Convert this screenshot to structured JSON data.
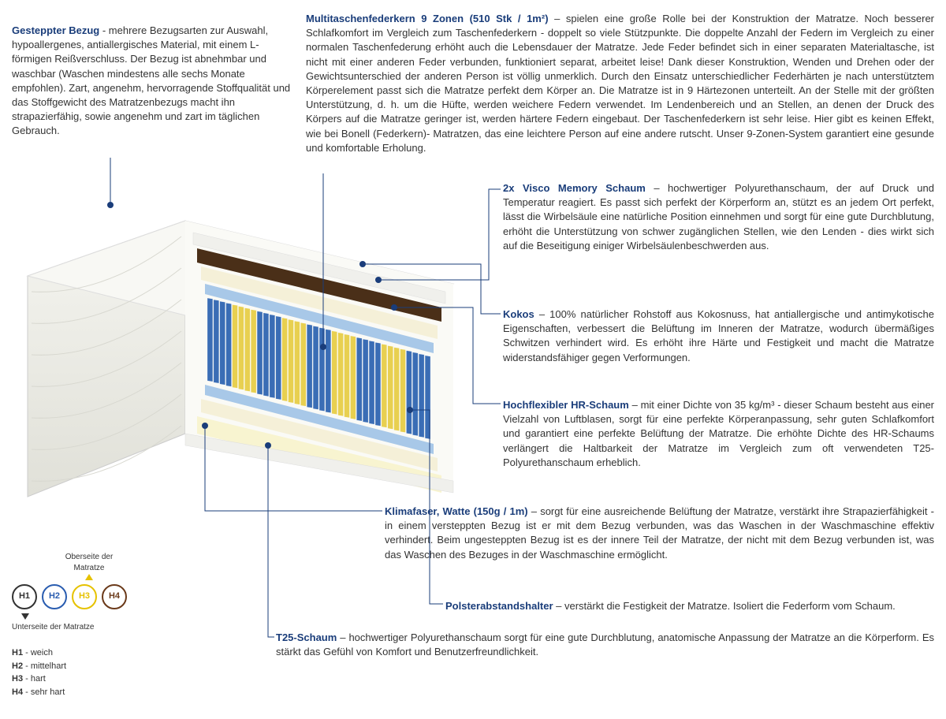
{
  "colors": {
    "title": "#1a3d7a",
    "text": "#333333",
    "h1_border": "#333333",
    "h2_border": "#2a5db0",
    "h3_border": "#e6c200",
    "h4_border": "#6b3a1a"
  },
  "sections": {
    "cover": {
      "title": "Gesteppter Bezug",
      "body": " - mehrere Bezugsarten zur Auswahl, hypoallergenes, antiallergisches Material, mit einem L-förmigen Reißverschluss. Der Bezug ist abnehmbar und waschbar (Waschen mindestens alle sechs Monate empfohlen). Zart, angenehm, hervorragende Stoffqualität und das Stoffgewicht des Matratzenbezugs macht ihn strapazierfähig, sowie angenehm und zart im täglichen Gebrauch."
    },
    "springs": {
      "title": "Multitaschenfederkern 9 Zonen (510 Stk / 1m²)",
      "body": " – spielen eine große Rolle bei der Konstruktion der Matratze. Noch besserer Schlafkomfort im Vergleich zum Taschenfederkern - doppelt so viele Stützpunkte. Die doppelte Anzahl der Federn im Vergleich zu einer normalen Taschenfederung erhöht auch die Lebensdauer der Matratze. Jede Feder befindet sich in einer separaten Materialtasche, ist nicht mit einer anderen Feder verbunden, funktioniert separat, arbeitet leise! Dank dieser Konstruktion, Wenden und Drehen oder der Gewichtsunterschied der anderen Person ist völlig unmerklich. Durch den Einsatz unterschiedlicher Federhärten je nach unterstütztem Körperelement passt sich die Matratze perfekt dem Körper an. Die Matratze ist in 9 Härtezonen unterteilt. An der Stelle mit der größten Unterstützung, d. h. um die Hüfte, werden weichere Federn verwendet. Im Lendenbereich und an Stellen, an denen der Druck des Körpers auf die Matratze geringer ist, werden härtere Federn eingebaut. Der Taschenfederkern ist sehr leise. Hier gibt es keinen Effekt, wie bei Bonell (Federkern)- Matratzen, das eine leichtere Person auf eine andere rutscht. Unser 9-Zonen-System garantiert eine gesunde und komfortable Erholung."
    },
    "visco": {
      "title": "2x Visco Memory Schaum",
      "body": " – hochwertiger Polyurethanschaum, der auf Druck und Temperatur reagiert. Es passt sich perfekt der Körperform an, stützt es an jedem Ort perfekt, lässt die Wirbelsäule eine natürliche Position einnehmen und sorgt für eine gute Durchblutung, erhöht die Unterstützung von schwer zugänglichen Stellen, wie den Lenden - dies wirkt sich auf die Beseitigung einiger Wirbelsäulenbeschwerden aus."
    },
    "kokos": {
      "title": "Kokos",
      "body": " – 100% natürlicher Rohstoff aus Kokosnuss, hat antiallergische und antimykotische Eigenschaften, verbessert die Belüftung im Inneren der Matratze, wodurch übermäßiges Schwitzen verhindert wird. Es erhöht ihre Härte und Festigkeit und macht die Matratze widerstandsfähiger gegen Verformungen."
    },
    "hr": {
      "title": "Hochflexibler HR-Schaum",
      "body": " – mit einer Dichte von 35 kg/m³ - dieser Schaum besteht aus einer Vielzahl von Luftblasen, sorgt für eine perfekte Körperanpassung, sehr guten Schlafkomfort und garantiert eine perfekte Belüftung der Matratze. Die erhöhte Dichte des HR-Schaums verlängert die Haltbarkeit der Matratze im Vergleich zum oft verwendeten T25-Polyurethanschaum erheblich."
    },
    "klima": {
      "title": "Klimafaser, Watte (150g / 1m)",
      "body": " – sorgt für eine ausreichende Belüftung der Matratze, verstärkt ihre Strapazierfähigkeit - in einem versteppten Bezug ist er mit dem Bezug verbunden, was das Waschen in der Waschmaschine effektiv verhindert. Beim ungesteppten Bezug ist es der innere Teil der Matratze, der nicht mit dem Bezug verbunden ist, was das Waschen des Bezuges in der Waschmaschine ermöglicht."
    },
    "polster": {
      "title": "Polsterabstandshalter",
      "body": " – verstärkt die Festigkeit der Matratze. Isoliert die Federform vom Schaum."
    },
    "t25": {
      "title": "T25-Schaum",
      "body": " – hochwertiger Polyurethanschaum sorgt für eine gute Durchblutung, anatomische Anpassung der Matratze an die Körperform. Es stärkt das Gefühl von Komfort und Benutzerfreundlichkeit."
    }
  },
  "legend": {
    "top_label": "Oberseite der Matratze",
    "bottom_label": "Unterseite der Matratze",
    "items": [
      {
        "code": "H1",
        "desc": "weich"
      },
      {
        "code": "H2",
        "desc": "mittelhart"
      },
      {
        "code": "H3",
        "desc": "hart"
      },
      {
        "code": "H4",
        "desc": "sehr hart"
      }
    ]
  },
  "mattress_viz": {
    "cover_color": "#f0f0ec",
    "kokos_color": "#4a2f18",
    "visco_color": "#f5f0d8",
    "hr_color": "#a8c8e8",
    "spring_blue": "#3a6db5",
    "spring_yellow": "#e8d050",
    "t25_color": "#f8f4d0",
    "zones": [
      "blue",
      "yellow",
      "blue",
      "yellow",
      "blue",
      "yellow",
      "blue",
      "yellow",
      "blue"
    ]
  }
}
